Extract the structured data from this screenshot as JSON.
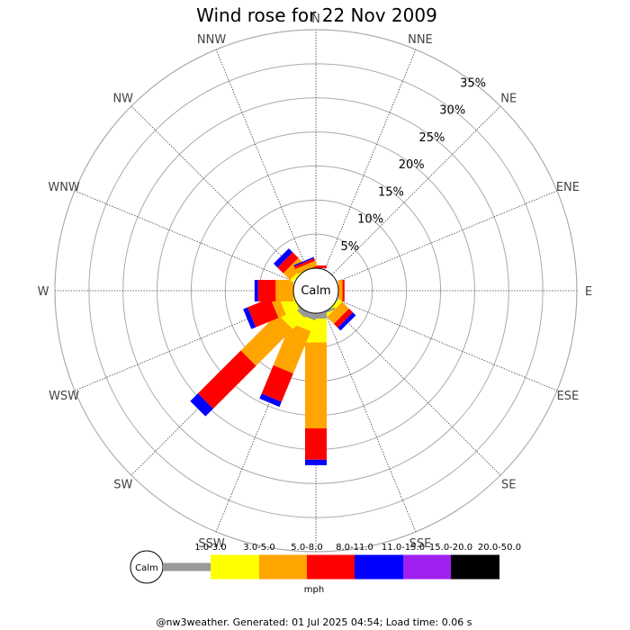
{
  "chart_data": {
    "type": "wind-rose",
    "title": "Wind rose for 22 Nov 2009",
    "directions": [
      "N",
      "NNE",
      "NE",
      "ENE",
      "E",
      "ESE",
      "SE",
      "SSE",
      "S",
      "SSW",
      "SW",
      "WSW",
      "W",
      "WNW",
      "NW",
      "NNW"
    ],
    "ring_values": [
      5,
      10,
      15,
      20,
      25,
      30,
      35
    ],
    "ring_labels": [
      "5%",
      "10%",
      "15%",
      "20%",
      "25%",
      "30%",
      "35%"
    ],
    "rlim": [
      0,
      35
    ],
    "calm_label": "Calm",
    "unit": "mph",
    "bins": [
      {
        "label": "1.0-3.0",
        "color": "#999999"
      },
      {
        "label": "3.0-5.0",
        "color": "#ffff00"
      },
      {
        "label": "5.0-8.0",
        "color": "#ffa500"
      },
      {
        "label": "8.0-11.0",
        "color": "#ff0000"
      },
      {
        "label": "11.0-15.0",
        "color": "#0000ff"
      },
      {
        "label": "15.0-20.0",
        "color": "#a020f0"
      },
      {
        "label": "20.0-50.0",
        "color": "#000000"
      }
    ],
    "series": [
      {
        "direction": "N",
        "values": [
          0,
          0,
          0,
          0.4,
          0,
          0,
          0
        ]
      },
      {
        "direction": "NNE",
        "values": [
          0,
          0,
          0,
          0,
          0,
          0,
          0
        ]
      },
      {
        "direction": "NE",
        "values": [
          0,
          0,
          0,
          0,
          0,
          0,
          0
        ]
      },
      {
        "direction": "ENE",
        "values": [
          0,
          0,
          0,
          0,
          0,
          0,
          0
        ]
      },
      {
        "direction": "E",
        "values": [
          0,
          0,
          0.6,
          0.3,
          0,
          0,
          0
        ]
      },
      {
        "direction": "ESE",
        "values": [
          0,
          0,
          0,
          0,
          0,
          0,
          0
        ]
      },
      {
        "direction": "SE",
        "values": [
          0,
          0.6,
          1.4,
          0.8,
          0.6,
          0,
          0
        ]
      },
      {
        "direction": "SSE",
        "values": [
          0.3,
          0,
          0,
          0,
          0,
          0,
          0
        ]
      },
      {
        "direction": "S",
        "values": [
          0.8,
          3.5,
          12.6,
          4.6,
          0.8,
          0,
          0
        ]
      },
      {
        "direction": "SSW",
        "values": [
          0.8,
          1.7,
          6.7,
          4.5,
          0.8,
          0,
          0
        ]
      },
      {
        "direction": "SW",
        "values": [
          0.7,
          2.4,
          7.6,
          8.9,
          1.6,
          0,
          0
        ]
      },
      {
        "direction": "WSW",
        "values": [
          0,
          2.1,
          1.2,
          3.6,
          0.7,
          0,
          0
        ]
      },
      {
        "direction": "W",
        "values": [
          0,
          0,
          2.6,
          2.6,
          0.5,
          0,
          0
        ]
      },
      {
        "direction": "WNW",
        "values": [
          0,
          0,
          0,
          0,
          0,
          0,
          0
        ]
      },
      {
        "direction": "NW",
        "values": [
          0,
          0.5,
          1.4,
          1.2,
          0.8,
          0,
          0
        ]
      },
      {
        "direction": "NNW",
        "values": [
          0,
          0,
          0.8,
          0.4,
          0.2,
          0,
          0
        ]
      }
    ]
  },
  "footer": "@nw3weather. Generated: 01 Jul 2025 04:54; Load time: 0.06 s"
}
